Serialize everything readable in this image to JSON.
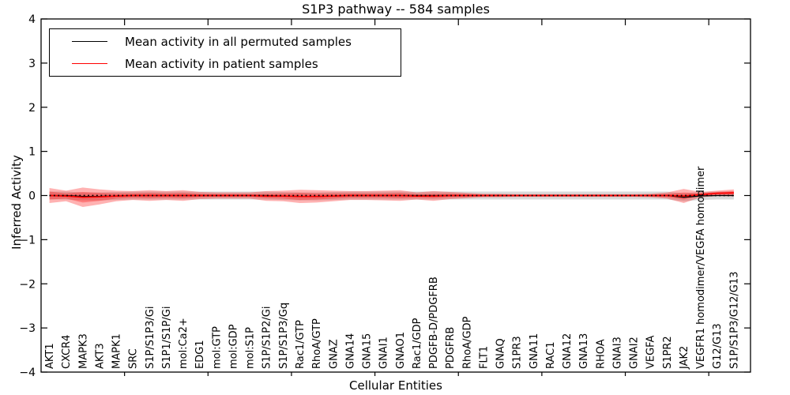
{
  "figure": {
    "title": "S1P3 pathway -- 584 samples",
    "xlabel": "Cellular Entities",
    "ylabel": "Inferred Activity"
  },
  "legend": {
    "items": [
      {
        "label": "Mean activity in all permuted samples",
        "color": "#000000"
      },
      {
        "label": "Mean activity in patient samples",
        "color": "#ff0000"
      }
    ]
  },
  "chart_data": {
    "type": "line",
    "title": "S1P3 pathway -- 584 samples",
    "xlabel": "Cellular Entities",
    "ylabel": "Inferred Activity",
    "ylim": [
      -4,
      4
    ],
    "yticks": [
      -4,
      -3,
      -2,
      -1,
      0,
      1,
      2,
      3,
      4
    ],
    "xticks": [
      5,
      10,
      15,
      20,
      25,
      30,
      35,
      40
    ],
    "grid": false,
    "legend_position": "upper left",
    "categories": [
      "AKT1",
      "CXCR4",
      "MAPK3",
      "AKT3",
      "MAPK1",
      "SRC",
      "S1P/S1P3/Gi",
      "S1P1/S1P/Gi",
      "mol:Ca2+",
      "EDG1",
      "mol:GTP",
      "mol:GDP",
      "mol:S1P",
      "S1P/S1P2/Gi",
      "S1P/S1P3/Gq",
      "Rac1/GTP",
      "RhoA/GTP",
      "GNAZ",
      "GNA14",
      "GNA15",
      "GNAI1",
      "GNAO1",
      "Rac1/GDP",
      "PDGFB-D/PDGFRB",
      "PDGFRB",
      "RhoA/GDP",
      "FLT1",
      "GNAQ",
      "S1PR3",
      "GNA11",
      "RAC1",
      "GNA12",
      "GNA13",
      "RHOA",
      "GNAI3",
      "GNAI2",
      "VEGFA",
      "S1PR2",
      "JAK2",
      "VEGFR1 homodimer/VEGFA homodimer",
      "G12/G13",
      "S1P/S1P3/G12/G13"
    ],
    "series": [
      {
        "name": "Mean activity in all permuted samples",
        "color": "#000000",
        "values": [
          0,
          0,
          -0.02,
          -0.02,
          -0.01,
          0,
          0,
          0,
          0,
          0,
          0,
          0,
          0,
          0,
          -0.01,
          -0.02,
          -0.02,
          -0.01,
          0,
          0,
          0,
          0,
          0,
          0,
          0,
          0,
          0,
          0,
          0,
          0,
          0,
          0,
          0,
          0,
          0,
          0,
          0,
          0,
          -0.04,
          -0.01,
          0,
          0
        ]
      },
      {
        "name": "Mean activity in patient samples",
        "color": "#ff0000",
        "values": [
          0,
          -0.01,
          -0.04,
          -0.03,
          -0.01,
          0,
          0,
          0,
          0,
          0,
          0,
          0,
          0,
          -0.01,
          -0.01,
          -0.02,
          -0.02,
          -0.01,
          0,
          0,
          0,
          0,
          -0.01,
          -0.01,
          0,
          0,
          0,
          0,
          0,
          0,
          0,
          0,
          0,
          0,
          0,
          0,
          0,
          0,
          -0.01,
          0.02,
          0.05,
          0.06
        ]
      }
    ],
    "bands": {
      "permuted_std": {
        "color": "#aaaaaa",
        "opacity": 0.45,
        "half_widths": [
          0.09,
          0.09,
          0.09,
          0.09,
          0.09,
          0.09,
          0.09,
          0.09,
          0.09,
          0.09,
          0.09,
          0.09,
          0.09,
          0.09,
          0.09,
          0.09,
          0.09,
          0.09,
          0.09,
          0.09,
          0.09,
          0.09,
          0.09,
          0.09,
          0.09,
          0.09,
          0.09,
          0.09,
          0.09,
          0.09,
          0.09,
          0.09,
          0.09,
          0.09,
          0.09,
          0.09,
          0.09,
          0.09,
          0.09,
          0.09,
          0.09,
          0.09
        ]
      },
      "patient_outer": {
        "color": "#ff0000",
        "opacity": 0.3,
        "half_widths": [
          0.17,
          0.12,
          0.22,
          0.17,
          0.12,
          0.1,
          0.12,
          0.1,
          0.12,
          0.08,
          0.07,
          0.07,
          0.07,
          0.11,
          0.12,
          0.15,
          0.14,
          0.12,
          0.1,
          0.1,
          0.11,
          0.12,
          0.08,
          0.11,
          0.08,
          0.06,
          0.04,
          0.04,
          0.03,
          0.03,
          0.03,
          0.03,
          0.03,
          0.03,
          0.03,
          0.03,
          0.04,
          0.07,
          0.16,
          0.06,
          0.06,
          0.08
        ]
      },
      "patient_inner": {
        "color": "#ff0000",
        "opacity": 0.3,
        "half_widths": [
          0.09,
          0.06,
          0.12,
          0.09,
          0.06,
          0.05,
          0.06,
          0.05,
          0.06,
          0.04,
          0.03,
          0.03,
          0.03,
          0.05,
          0.06,
          0.08,
          0.07,
          0.06,
          0.05,
          0.05,
          0.05,
          0.06,
          0.04,
          0.05,
          0.04,
          0.03,
          0.02,
          0.02,
          0.015,
          0.015,
          0.015,
          0.015,
          0.015,
          0.015,
          0.015,
          0.015,
          0.02,
          0.035,
          0.08,
          0.03,
          0.03,
          0.04
        ]
      }
    },
    "zero_line": {
      "style": "dotted",
      "color": "#000000",
      "y": 0
    }
  }
}
